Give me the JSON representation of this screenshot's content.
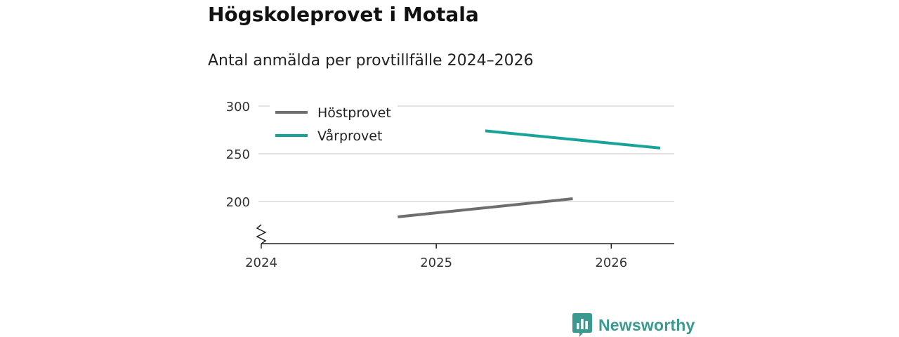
{
  "header": {
    "title": "Högskoleprovet i Motala",
    "subtitle": "Antal anmälda per provtillfälle 2024–2026"
  },
  "chart_data": {
    "type": "line",
    "title": "Högskoleprovet i Motala",
    "subtitle": "Antal anmälda per provtillfälle 2024–2026",
    "xlabel": "",
    "ylabel": "",
    "x_ticks": [
      2024,
      2025,
      2026
    ],
    "y_ticks": [
      200,
      250,
      300
    ],
    "xlim": [
      2024,
      2026.36
    ],
    "ylim": [
      156,
      300
    ],
    "y_axis_break": true,
    "grid": "horizontal",
    "legend_position": "top-left",
    "series": [
      {
        "name": "Höstprovet",
        "color": "#6e6e6e",
        "x": [
          2024.78,
          2025.78
        ],
        "values": [
          184,
          203
        ]
      },
      {
        "name": "Vårprovet",
        "color": "#18a39a",
        "x": [
          2025.28,
          2026.28
        ],
        "values": [
          274,
          256
        ]
      }
    ]
  },
  "branding": {
    "name": "Newsworthy",
    "logo_color": "#3a9a8f",
    "icon": "bar-chart-speech-bubble-icon"
  }
}
